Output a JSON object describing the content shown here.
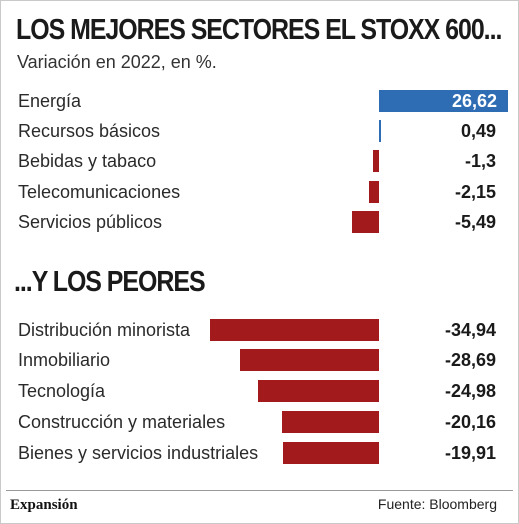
{
  "header": {
    "title": "LOS MEJORES SECTORES EL STOXX 600...",
    "subtitle": "Variación en 2022, en %."
  },
  "section2": {
    "title": "...Y LOS PEORES"
  },
  "colors": {
    "positive": "#2e6db4",
    "negative": "#a31a1c"
  },
  "chart_data": [
    {
      "type": "bar",
      "title": "LOS MEJORES SECTORES EL STOXX 600...",
      "subtitle": "Variación en 2022, en %.",
      "categories": [
        "Energía",
        "Recursos básicos",
        "Bebidas y tabaco",
        "Telecomunicaciones",
        "Servicios públicos"
      ],
      "values": [
        26.62,
        0.49,
        -1.3,
        -2.15,
        -5.49
      ],
      "value_labels": [
        "26,62",
        "0,49",
        "-1,3",
        "-2,15",
        "-5,49"
      ],
      "orientation": "horizontal",
      "grid": false
    },
    {
      "type": "bar",
      "title": "...Y LOS PEORES",
      "categories": [
        "Distribución minorista",
        "Inmobiliario",
        "Tecnología",
        "Construcción y materiales",
        "Bienes y servicios industriales"
      ],
      "values": [
        -34.94,
        -28.69,
        -24.98,
        -20.16,
        -19.91
      ],
      "value_labels": [
        "-34,94",
        "-28,69",
        "-24,98",
        "-20,16",
        "-19,91"
      ],
      "orientation": "horizontal",
      "grid": false
    }
  ],
  "footer": {
    "brand": "Expansión",
    "source": "Fuente: Bloomberg"
  }
}
